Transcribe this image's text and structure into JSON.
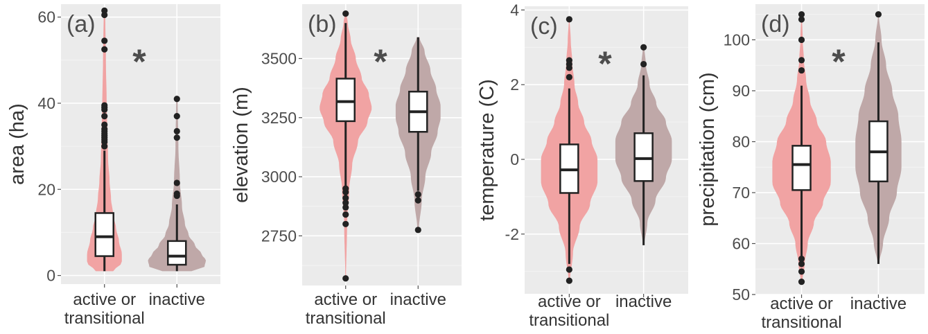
{
  "colors": {
    "panel_bg": "#ebebeb",
    "grid_major": "#ffffff",
    "grid_minor": "#f4f4f4",
    "active_fill": "#f1a3a3",
    "inactive_fill": "#bfa8a8",
    "box_fill": "#ffffff",
    "line": "#222222",
    "axis_text": "#4d4d4d",
    "title_text": "#333333"
  },
  "chart_data": [
    {
      "type": "violin",
      "panel_label": "(a)",
      "significance": "*",
      "ylabel": "area (ha)",
      "ylim": [
        -2,
        63
      ],
      "yticks": [
        0,
        20,
        40,
        60
      ],
      "categories": [
        "active or\ntransitional",
        "inactive"
      ],
      "series": [
        {
          "category": "active or transitional",
          "box": {
            "whisker_low": 1,
            "q1": 4.5,
            "median": 9,
            "q3": 14.5,
            "whisker_high": 29
          },
          "outliers": [
            30,
            31,
            31.5,
            32,
            32.5,
            33,
            33.5,
            34,
            35,
            37,
            38.5,
            39,
            39.5,
            52.5,
            54.5,
            60.5,
            61.5
          ],
          "density": {
            "y": [
              1,
              3,
              5,
              8,
              11,
              14,
              18,
              22,
              27,
              33,
              40,
              50,
              61.5
            ],
            "w": [
              0.12,
              0.24,
              0.24,
              0.2,
              0.16,
              0.12,
              0.09,
              0.07,
              0.05,
              0.04,
              0.03,
              0.02,
              0.01
            ]
          }
        },
        {
          "category": "inactive",
          "box": {
            "whisker_low": 1,
            "q1": 2.5,
            "median": 4.5,
            "q3": 8,
            "whisker_high": 16.5
          },
          "outliers": [
            18.5,
            19,
            21.5,
            32,
            33.5,
            37,
            41
          ],
          "density": {
            "y": [
              1,
              2,
              3.5,
              5,
              7,
              9.5,
              12,
              16,
              22,
              30,
              41
            ],
            "w": [
              0.2,
              0.38,
              0.4,
              0.34,
              0.25,
              0.16,
              0.11,
              0.07,
              0.04,
              0.02,
              0.01
            ]
          }
        }
      ]
    },
    {
      "type": "violin",
      "panel_label": "(b)",
      "significance": "*",
      "ylabel": "elevation (m)",
      "ylim": [
        2540,
        3730
      ],
      "yticks": [
        2750,
        3000,
        3250,
        3500
      ],
      "categories": [
        "active or\ntransitional",
        "inactive"
      ],
      "series": [
        {
          "category": "active or transitional",
          "box": {
            "whisker_low": 2960,
            "q1": 3235,
            "median": 3318,
            "q3": 3415,
            "whisker_high": 3650
          },
          "outliers": [
            2570,
            2800,
            2840,
            2870,
            2890,
            2910,
            2935,
            2950,
            3690
          ],
          "density": {
            "y": [
              2570,
              2800,
              2950,
              3050,
              3150,
              3230,
              3290,
              3350,
              3420,
              3500,
              3580,
              3650,
              3690
            ],
            "w": [
              0.005,
              0.02,
              0.05,
              0.09,
              0.17,
              0.3,
              0.36,
              0.32,
              0.22,
              0.14,
              0.07,
              0.03,
              0.01
            ]
          }
        },
        {
          "category": "inactive",
          "box": {
            "whisker_low": 2940,
            "q1": 3190,
            "median": 3275,
            "q3": 3360,
            "whisker_high": 3590
          },
          "outliers": [
            2775,
            2900,
            2925
          ],
          "density": {
            "y": [
              2775,
              2900,
              3000,
              3100,
              3190,
              3250,
              3300,
              3370,
              3450,
              3530,
              3590
            ],
            "w": [
              0.01,
              0.05,
              0.1,
              0.18,
              0.27,
              0.31,
              0.31,
              0.25,
              0.17,
              0.09,
              0.02
            ]
          }
        }
      ]
    },
    {
      "type": "violin",
      "panel_label": "(c)",
      "significance": "*",
      "ylabel": "temperature (C)",
      "ylim": [
        -3.6,
        4.1
      ],
      "yticks": [
        -2,
        0,
        2,
        4
      ],
      "categories": [
        "active or\ntransitional",
        "inactive"
      ],
      "series": [
        {
          "category": "active or transitional",
          "box": {
            "whisker_low": -2.8,
            "q1": -0.9,
            "median": -0.28,
            "q3": 0.4,
            "whisker_high": 1.9
          },
          "outliers": [
            -3.25,
            -2.95,
            2.2,
            2.45,
            2.55,
            2.65,
            3.75
          ],
          "density": {
            "y": [
              -3.25,
              -2.5,
              -1.8,
              -1.2,
              -0.6,
              0,
              0.5,
              1,
              1.5,
              2,
              2.6,
              3.2,
              3.75
            ],
            "w": [
              0.01,
              0.05,
              0.14,
              0.28,
              0.38,
              0.38,
              0.3,
              0.2,
              0.12,
              0.07,
              0.04,
              0.02,
              0.005
            ]
          }
        },
        {
          "category": "inactive",
          "box": {
            "whisker_low": -2.3,
            "q1": -0.58,
            "median": 0.02,
            "q3": 0.7,
            "whisker_high": 2.25
          },
          "outliers": [
            2.55,
            3.0
          ],
          "density": {
            "y": [
              -2.3,
              -1.7,
              -1.1,
              -0.5,
              0,
              0.5,
              1,
              1.5,
              2,
              2.55,
              3.0
            ],
            "w": [
              0.01,
              0.05,
              0.16,
              0.3,
              0.38,
              0.38,
              0.3,
              0.17,
              0.08,
              0.03,
              0.01
            ]
          }
        }
      ]
    },
    {
      "type": "violin",
      "panel_label": "(d)",
      "significance": "*",
      "ylabel": "precipitation (cm)",
      "ylim": [
        50,
        107
      ],
      "yticks": [
        50,
        60,
        70,
        80,
        90,
        100
      ],
      "categories": [
        "active or\ntransitional",
        "inactive"
      ],
      "series": [
        {
          "category": "active or transitional",
          "box": {
            "whisker_low": 57.5,
            "q1": 70.5,
            "median": 75.5,
            "q3": 79.2,
            "whisker_high": 91
          },
          "outliers": [
            52.5,
            54.5,
            56,
            57,
            94,
            96,
            100,
            104,
            105
          ],
          "density": {
            "y": [
              52.5,
              56,
              60,
              64,
              68,
              72,
              76,
              80,
              84,
              88,
              92,
              96,
              100,
              105
            ],
            "w": [
              0.01,
              0.04,
              0.08,
              0.16,
              0.28,
              0.38,
              0.38,
              0.32,
              0.2,
              0.11,
              0.06,
              0.03,
              0.015,
              0.005
            ]
          }
        },
        {
          "category": "inactive",
          "box": {
            "whisker_low": 56,
            "q1": 72.2,
            "median": 78,
            "q3": 84,
            "whisker_high": 99.5
          },
          "outliers": [
            105
          ],
          "density": {
            "y": [
              56,
              60,
              65,
              70,
              75,
              80,
              85,
              90,
              95,
              100,
              105
            ],
            "w": [
              0.01,
              0.06,
              0.14,
              0.24,
              0.3,
              0.3,
              0.26,
              0.18,
              0.1,
              0.04,
              0.005
            ]
          }
        }
      ]
    }
  ]
}
